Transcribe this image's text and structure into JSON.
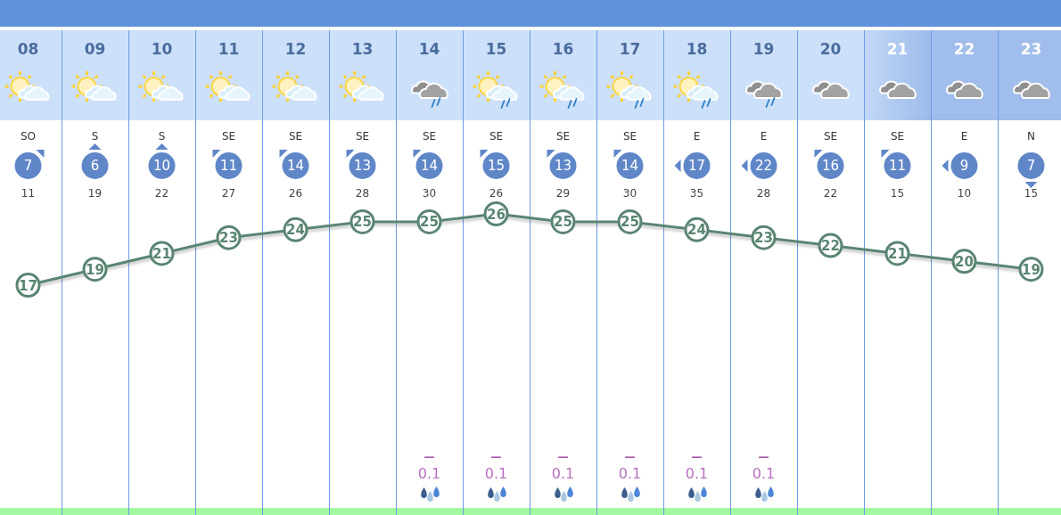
{
  "chart_data": {
    "type": "line",
    "categories": [
      "08",
      "09",
      "10",
      "11",
      "12",
      "13",
      "14",
      "15",
      "16",
      "17",
      "18",
      "19",
      "20",
      "21",
      "22",
      "23"
    ],
    "series": [
      {
        "color": "#5a8572",
        "values": [
          17,
          19,
          21,
          23,
          24,
          25,
          25,
          26,
          25,
          25,
          24,
          23,
          22,
          21,
          20,
          19
        ]
      }
    ],
    "data_labels": true,
    "marker": "circle",
    "line_style": "solid",
    "grid": "x",
    "annotations": [
      "SO",
      "S",
      "S",
      "SE",
      "SE",
      "SE",
      "SE",
      "SE",
      "SE",
      "SE",
      "E",
      "E",
      "SE",
      "SE",
      "E",
      "N",
      "7",
      "6",
      "10",
      "11",
      "14",
      "13",
      "14",
      "15",
      "13",
      "14",
      "17",
      "22",
      "16",
      "11",
      "9",
      "7",
      "11",
      "19",
      "22",
      "27",
      "26",
      "28",
      "30",
      "26",
      "29",
      "30",
      "35",
      "28",
      "22",
      "15",
      "10",
      "15",
      "—",
      "0.1",
      "—",
      "0.1",
      "—",
      "0.1",
      "—",
      "0.1",
      "—",
      "0.1",
      "—",
      "0.1"
    ]
  }
}
